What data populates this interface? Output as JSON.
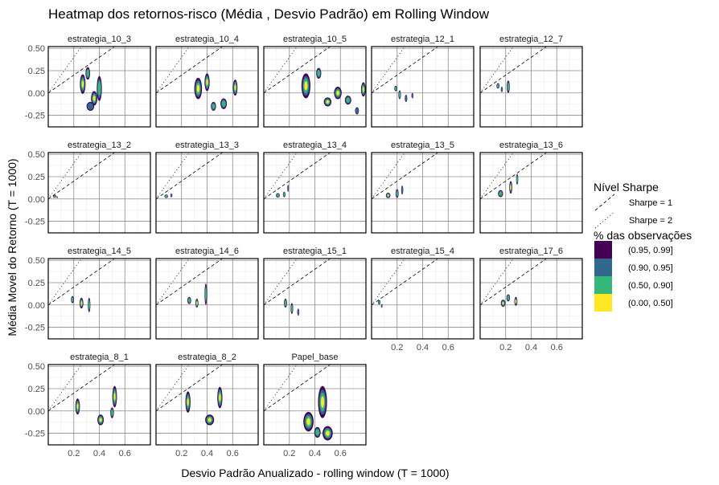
{
  "chart_data": {
    "type": "heatmap",
    "title": "Heatmap dos retornos-risco (Média , Desvio Padrão) em Rolling Window",
    "xlabel": "Desvio Padrão Anualizado - rolling window (T = 1000)",
    "ylabel": "Média Movel do Retorno (T = 1000)",
    "xlim": [
      0.0,
      0.8
    ],
    "ylim": [
      -0.38,
      0.52
    ],
    "x_ticks": [
      0.2,
      0.4,
      0.6
    ],
    "x_tick_labels": [
      "0.2",
      "0.4",
      "0.6"
    ],
    "y_ticks": [
      -0.25,
      0.0,
      0.25,
      0.5
    ],
    "y_tick_labels": [
      "-0.25",
      "0.00",
      "0.25",
      "0.50"
    ],
    "grid": true,
    "reference_lines": [
      {
        "name": "Sharpe = 1",
        "slope": 1,
        "style": "dashed"
      },
      {
        "name": "Sharpe = 2",
        "slope": 2,
        "style": "dotted"
      }
    ],
    "line_legend_title": "Nível Sharpe",
    "fill_legend_title": "% das observações",
    "levels": [
      {
        "label": "(0.95, 0.99]",
        "color": "#440154"
      },
      {
        "label": "(0.90, 0.95]",
        "color": "#31688e"
      },
      {
        "label": "(0.50, 0.90]",
        "color": "#35b779"
      },
      {
        "label": "(0.00, 0.50]",
        "color": "#fde725"
      }
    ],
    "legend_position": "right",
    "panels": [
      {
        "name": "estrategia_10_3",
        "blobs": [
          {
            "x": 0.27,
            "y": 0.1,
            "sx": 0.022,
            "sy": 0.11,
            "lvl": 3
          },
          {
            "x": 0.31,
            "y": 0.22,
            "sx": 0.018,
            "sy": 0.07,
            "lvl": 2
          },
          {
            "x": 0.36,
            "y": -0.06,
            "sx": 0.025,
            "sy": 0.08,
            "lvl": 3
          },
          {
            "x": 0.4,
            "y": 0.05,
            "sx": 0.02,
            "sy": 0.14,
            "lvl": 2
          },
          {
            "x": 0.33,
            "y": -0.15,
            "sx": 0.03,
            "sy": 0.05,
            "lvl": 1
          }
        ]
      },
      {
        "name": "estrategia_10_4",
        "blobs": [
          {
            "x": 0.33,
            "y": 0.05,
            "sx": 0.03,
            "sy": 0.12,
            "lvl": 3
          },
          {
            "x": 0.4,
            "y": 0.12,
            "sx": 0.02,
            "sy": 0.1,
            "lvl": 3
          },
          {
            "x": 0.45,
            "y": -0.15,
            "sx": 0.02,
            "sy": 0.05,
            "lvl": 2
          },
          {
            "x": 0.62,
            "y": 0.06,
            "sx": 0.018,
            "sy": 0.09,
            "lvl": 3
          },
          {
            "x": 0.53,
            "y": -0.12,
            "sx": 0.025,
            "sy": 0.06,
            "lvl": 2
          }
        ]
      },
      {
        "name": "estrategia_10_5",
        "blobs": [
          {
            "x": 0.33,
            "y": 0.08,
            "sx": 0.035,
            "sy": 0.14,
            "lvl": 3
          },
          {
            "x": 0.43,
            "y": 0.22,
            "sx": 0.02,
            "sy": 0.06,
            "lvl": 2
          },
          {
            "x": 0.58,
            "y": 0.0,
            "sx": 0.03,
            "sy": 0.07,
            "lvl": 3
          },
          {
            "x": 0.5,
            "y": -0.1,
            "sx": 0.03,
            "sy": 0.05,
            "lvl": 3
          },
          {
            "x": 0.66,
            "y": -0.08,
            "sx": 0.025,
            "sy": 0.05,
            "lvl": 2
          },
          {
            "x": 0.78,
            "y": 0.04,
            "sx": 0.018,
            "sy": 0.08,
            "lvl": 3
          },
          {
            "x": 0.73,
            "y": -0.2,
            "sx": 0.015,
            "sy": 0.04,
            "lvl": 1
          }
        ]
      },
      {
        "name": "estrategia_12_1",
        "blobs": [
          {
            "x": 0.19,
            "y": 0.05,
            "sx": 0.012,
            "sy": 0.03,
            "lvl": 2
          },
          {
            "x": 0.22,
            "y": -0.02,
            "sx": 0.01,
            "sy": 0.05,
            "lvl": 2
          },
          {
            "x": 0.27,
            "y": -0.06,
            "sx": 0.01,
            "sy": 0.04,
            "lvl": 1
          },
          {
            "x": 0.32,
            "y": -0.03,
            "sx": 0.008,
            "sy": 0.03,
            "lvl": 1
          }
        ]
      },
      {
        "name": "estrategia_12_7",
        "blobs": [
          {
            "x": 0.14,
            "y": 0.08,
            "sx": 0.012,
            "sy": 0.03,
            "lvl": 2
          },
          {
            "x": 0.17,
            "y": 0.04,
            "sx": 0.008,
            "sy": 0.03,
            "lvl": 1
          },
          {
            "x": 0.22,
            "y": 0.07,
            "sx": 0.012,
            "sy": 0.07,
            "lvl": 2
          }
        ]
      },
      {
        "name": "estrategia_13_2",
        "blobs": [
          {
            "x": 0.05,
            "y": 0.03,
            "sx": 0.012,
            "sy": 0.015,
            "lvl": 2
          },
          {
            "x": 0.07,
            "y": 0.02,
            "sx": 0.006,
            "sy": 0.01,
            "lvl": 1
          }
        ]
      },
      {
        "name": "estrategia_13_3",
        "blobs": [
          {
            "x": 0.08,
            "y": 0.03,
            "sx": 0.014,
            "sy": 0.02,
            "lvl": 2
          },
          {
            "x": 0.12,
            "y": 0.04,
            "sx": 0.008,
            "sy": 0.02,
            "lvl": 1
          }
        ]
      },
      {
        "name": "estrategia_13_4",
        "blobs": [
          {
            "x": 0.11,
            "y": 0.04,
            "sx": 0.015,
            "sy": 0.025,
            "lvl": 2
          },
          {
            "x": 0.16,
            "y": 0.05,
            "sx": 0.01,
            "sy": 0.03,
            "lvl": 2
          },
          {
            "x": 0.19,
            "y": 0.12,
            "sx": 0.006,
            "sy": 0.04,
            "lvl": 1
          }
        ]
      },
      {
        "name": "estrategia_13_5",
        "blobs": [
          {
            "x": 0.13,
            "y": 0.04,
            "sx": 0.018,
            "sy": 0.03,
            "lvl": 3
          },
          {
            "x": 0.2,
            "y": 0.06,
            "sx": 0.012,
            "sy": 0.05,
            "lvl": 2
          },
          {
            "x": 0.24,
            "y": 0.1,
            "sx": 0.008,
            "sy": 0.05,
            "lvl": 1
          }
        ]
      },
      {
        "name": "estrategia_13_6",
        "blobs": [
          {
            "x": 0.16,
            "y": 0.06,
            "sx": 0.02,
            "sy": 0.04,
            "lvl": 2
          },
          {
            "x": 0.24,
            "y": 0.13,
            "sx": 0.012,
            "sy": 0.07,
            "lvl": 3
          },
          {
            "x": 0.29,
            "y": 0.22,
            "sx": 0.008,
            "sy": 0.06,
            "lvl": 2
          }
        ]
      },
      {
        "name": "estrategia_14_5",
        "blobs": [
          {
            "x": 0.19,
            "y": 0.06,
            "sx": 0.012,
            "sy": 0.04,
            "lvl": 2
          },
          {
            "x": 0.26,
            "y": 0.02,
            "sx": 0.015,
            "sy": 0.06,
            "lvl": 3
          },
          {
            "x": 0.32,
            "y": 0.0,
            "sx": 0.01,
            "sy": 0.08,
            "lvl": 2
          }
        ]
      },
      {
        "name": "estrategia_14_6",
        "blobs": [
          {
            "x": 0.26,
            "y": 0.05,
            "sx": 0.015,
            "sy": 0.04,
            "lvl": 2
          },
          {
            "x": 0.32,
            "y": 0.02,
            "sx": 0.012,
            "sy": 0.05,
            "lvl": 3
          },
          {
            "x": 0.39,
            "y": 0.12,
            "sx": 0.01,
            "sy": 0.12,
            "lvl": 2
          }
        ]
      },
      {
        "name": "estrategia_15_1",
        "blobs": [
          {
            "x": 0.17,
            "y": 0.02,
            "sx": 0.012,
            "sy": 0.05,
            "lvl": 2
          },
          {
            "x": 0.22,
            "y": -0.04,
            "sx": 0.01,
            "sy": 0.06,
            "lvl": 2
          },
          {
            "x": 0.27,
            "y": -0.08,
            "sx": 0.008,
            "sy": 0.04,
            "lvl": 1
          }
        ]
      },
      {
        "name": "estrategia_15_4",
        "blobs": [
          {
            "x": 0.06,
            "y": 0.03,
            "sx": 0.01,
            "sy": 0.025,
            "lvl": 2
          },
          {
            "x": 0.08,
            "y": -0.01,
            "sx": 0.006,
            "sy": 0.02,
            "lvl": 1
          }
        ]
      },
      {
        "name": "estrategia_17_6",
        "blobs": [
          {
            "x": 0.18,
            "y": 0.02,
            "sx": 0.018,
            "sy": 0.04,
            "lvl": 3
          },
          {
            "x": 0.22,
            "y": 0.08,
            "sx": 0.014,
            "sy": 0.04,
            "lvl": 2
          },
          {
            "x": 0.28,
            "y": 0.04,
            "sx": 0.012,
            "sy": 0.05,
            "lvl": 3
          }
        ]
      },
      {
        "name": "estrategia_8_1",
        "blobs": [
          {
            "x": 0.23,
            "y": 0.05,
            "sx": 0.018,
            "sy": 0.09,
            "lvl": 3
          },
          {
            "x": 0.41,
            "y": -0.1,
            "sx": 0.025,
            "sy": 0.06,
            "lvl": 3
          },
          {
            "x": 0.52,
            "y": 0.16,
            "sx": 0.018,
            "sy": 0.12,
            "lvl": 3
          },
          {
            "x": 0.5,
            "y": -0.02,
            "sx": 0.014,
            "sy": 0.06,
            "lvl": 2
          }
        ]
      },
      {
        "name": "estrategia_8_2",
        "blobs": [
          {
            "x": 0.25,
            "y": 0.1,
            "sx": 0.02,
            "sy": 0.12,
            "lvl": 3
          },
          {
            "x": 0.42,
            "y": -0.1,
            "sx": 0.035,
            "sy": 0.06,
            "lvl": 3
          },
          {
            "x": 0.5,
            "y": 0.15,
            "sx": 0.02,
            "sy": 0.12,
            "lvl": 3
          }
        ]
      },
      {
        "name": "Papel_base",
        "blobs": [
          {
            "x": 0.35,
            "y": -0.12,
            "sx": 0.04,
            "sy": 0.11,
            "lvl": 3
          },
          {
            "x": 0.46,
            "y": 0.1,
            "sx": 0.035,
            "sy": 0.18,
            "lvl": 3
          },
          {
            "x": 0.5,
            "y": -0.25,
            "sx": 0.04,
            "sy": 0.08,
            "lvl": 3
          },
          {
            "x": 0.42,
            "y": -0.24,
            "sx": 0.025,
            "sy": 0.06,
            "lvl": 2
          }
        ]
      }
    ]
  }
}
